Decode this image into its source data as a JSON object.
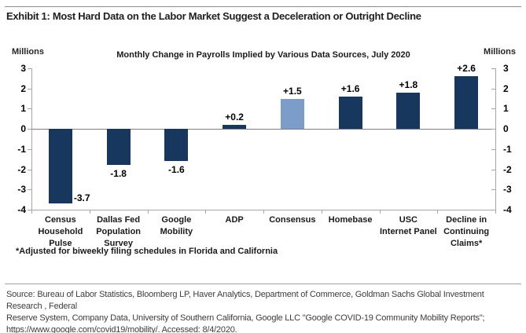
{
  "exhibit": {
    "title": "Exhibit 1: Most Hard Data on the Labor Market Suggest a Deceleration or Outright Decline"
  },
  "footnote": "*Adjusted for biweekly filing schedules in Florida and California",
  "source": {
    "lines": [
      "Source: Bureau of Labor Statistics, Bloomberg LP, Haver Analytics, Department of Commerce, Goldman Sachs Global Investment Research , Federal",
      "Reserve System, Company Data, University of Southern California, Google LLC \"Google COVID-19 Community Mobility Reports\";",
      "https://www.google.com/covid19/mobility/. Accessed: 8/4/2020."
    ]
  },
  "chart_data": {
    "type": "bar",
    "title": "Monthly Change in Payrolls Implied by Various Data Sources, July 2020",
    "unit_label": "Millions",
    "ylabel": "Millions",
    "xlabel": "",
    "ylim": [
      -4,
      3
    ],
    "yticks": [
      3,
      2,
      1,
      0,
      -1,
      -2,
      -3,
      -4
    ],
    "grid": "zero-line-only",
    "legend": "none",
    "colors": {
      "default_bar": "#17375E",
      "consensus_bar": "#7C9CC9",
      "axis": "#A6A6A6",
      "zero_line": "#7F7F7F"
    },
    "categories": [
      "Census Household Pulse",
      "Dallas Fed Population Survey",
      "Google Mobility",
      "ADP",
      "Consensus",
      "Homebase",
      "USC Internet Panel",
      "Decline in Continuing Claims*"
    ],
    "values": [
      -3.7,
      -1.8,
      -1.6,
      0.2,
      1.5,
      1.6,
      1.8,
      2.6
    ],
    "points": [
      {
        "category": "Census\nHousehold\nPulse",
        "value": -3.7,
        "label": "-3.7",
        "label_pos": "right",
        "color": "#17375E"
      },
      {
        "category": "Dallas Fed\nPopulation\nSurvey",
        "value": -1.8,
        "label": "-1.8",
        "label_pos": "below",
        "color": "#17375E"
      },
      {
        "category": "Google\nMobility",
        "value": -1.6,
        "label": "-1.6",
        "label_pos": "below",
        "color": "#17375E"
      },
      {
        "category": "ADP",
        "value": 0.2,
        "label": "+0.2",
        "label_pos": "above",
        "color": "#17375E"
      },
      {
        "category": "Consensus",
        "value": 1.5,
        "label": "+1.5",
        "label_pos": "above",
        "color": "#7C9CC9"
      },
      {
        "category": "Homebase",
        "value": 1.6,
        "label": "+1.6",
        "label_pos": "above",
        "color": "#17375E"
      },
      {
        "category": "USC\nInternet Panel",
        "value": 1.8,
        "label": "+1.8",
        "label_pos": "above",
        "color": "#17375E"
      },
      {
        "category": "Decline in\nContinuing\nClaims*",
        "value": 2.6,
        "label": "+2.6",
        "label_pos": "above",
        "color": "#17375E"
      }
    ]
  }
}
